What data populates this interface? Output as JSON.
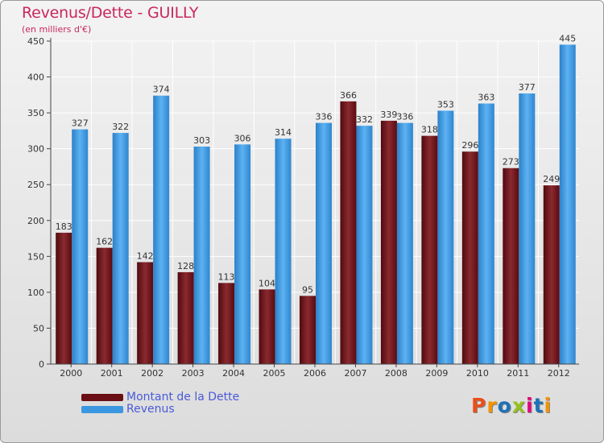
{
  "header": {
    "title": "Revenus/Dette - GUILLY",
    "subtitle": "(en milliers d'€)"
  },
  "legend": [
    {
      "label": "Montant de la Dette",
      "color": "#6b0e14"
    },
    {
      "label": "Revenus",
      "color": "#3a97e0"
    }
  ],
  "logo": {
    "text": "Proxiti",
    "letter_colors": [
      "#e94e1b",
      "#f39200",
      "#1d71b8",
      "#95c11f",
      "#e6007e",
      "#1d71b8",
      "#f39200"
    ]
  },
  "chart_data": {
    "type": "bar",
    "categories": [
      "2000",
      "2001",
      "2002",
      "2003",
      "2004",
      "2005",
      "2006",
      "2007",
      "2008",
      "2009",
      "2010",
      "2011",
      "2012"
    ],
    "series": [
      {
        "name": "Montant de la Dette",
        "color": "#6b0e14",
        "values": [
          183,
          162,
          142,
          128,
          113,
          104,
          95,
          366,
          339,
          318,
          296,
          273,
          249
        ]
      },
      {
        "name": "Revenus",
        "color": "#3a97e0",
        "values": [
          327,
          322,
          374,
          303,
          306,
          314,
          336,
          332,
          336,
          353,
          363,
          377,
          445
        ]
      }
    ],
    "y_ticks": [
      0,
      50,
      100,
      150,
      200,
      250,
      300,
      350,
      400,
      450
    ],
    "ylim": [
      0,
      450
    ],
    "grid": true,
    "legend_position": "bottom-left"
  }
}
